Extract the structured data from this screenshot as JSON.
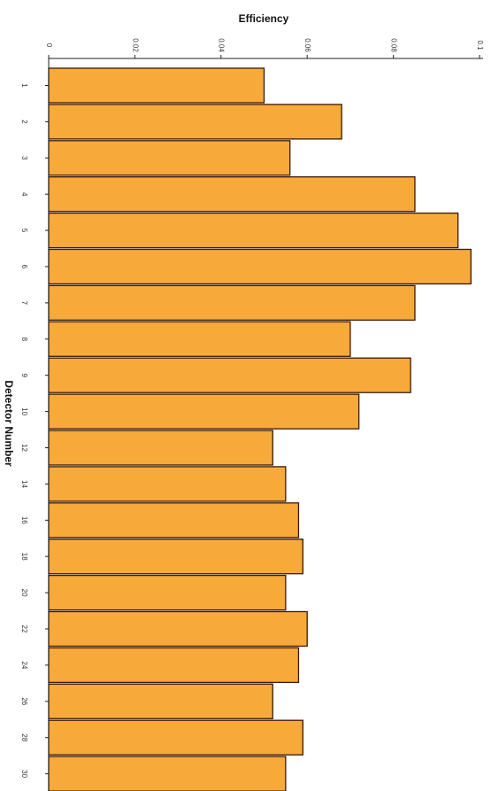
{
  "chart_data": {
    "type": "bar",
    "orientation": "horizontal",
    "title": "",
    "xlabel": "Efficiency",
    "ylabel": "Detector Number",
    "xlim": [
      0,
      0.1
    ],
    "x_ticks": [
      "0",
      "0.02",
      "0.04",
      "0.06",
      "0.08",
      "0.1"
    ],
    "categories": [
      "1",
      "2",
      "3",
      "4",
      "5",
      "6",
      "7",
      "8",
      "9",
      "10",
      "12",
      "14",
      "16",
      "18",
      "20",
      "22",
      "24",
      "26",
      "28",
      "30"
    ],
    "values": [
      0.05,
      0.068,
      0.056,
      0.085,
      0.095,
      0.098,
      0.085,
      0.07,
      0.084,
      0.072,
      0.052,
      0.055,
      0.058,
      0.059,
      0.055,
      0.06,
      0.058,
      0.052,
      0.059,
      0.055
    ],
    "grid": false,
    "legend": "none",
    "bar_color": "#f7a93a",
    "edge_color": "#3a1a08"
  }
}
